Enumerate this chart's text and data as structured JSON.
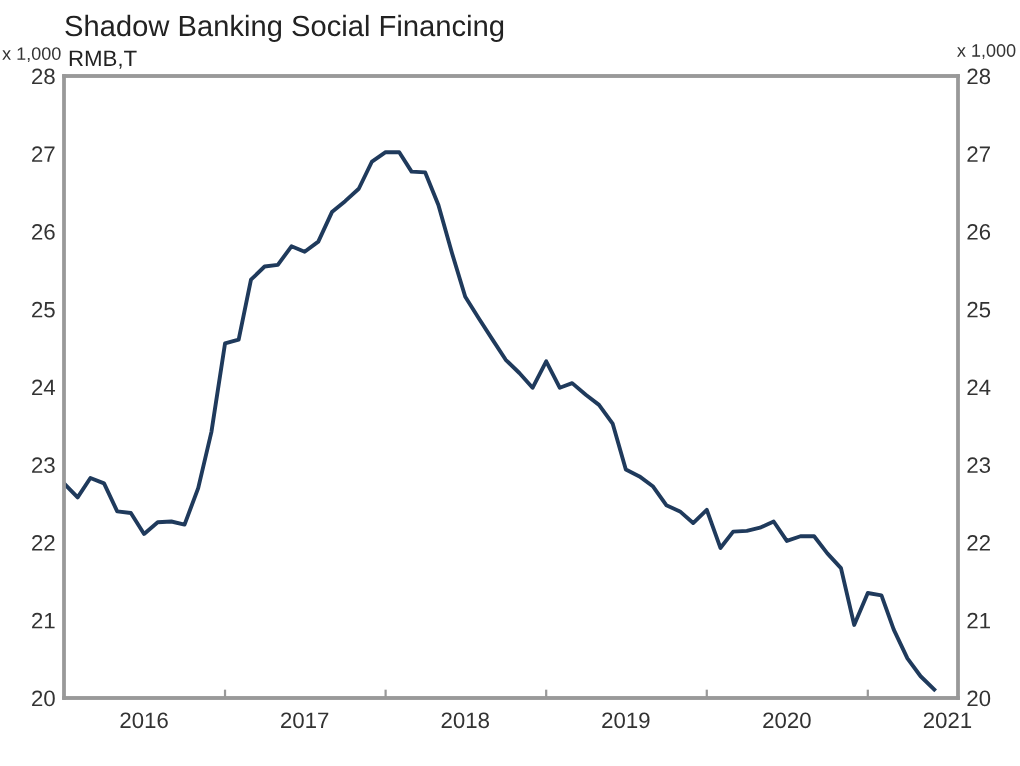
{
  "chart_data": {
    "type": "line",
    "title": "Shadow Banking Social Financing",
    "subtitle": "RMB,T",
    "ylabel": "x 1,000",
    "y2label": "x 1,000",
    "x": [
      "2016-01",
      "2016-02",
      "2016-03",
      "2016-04",
      "2016-05",
      "2016-06",
      "2016-07",
      "2016-08",
      "2016-09",
      "2016-10",
      "2016-11",
      "2016-12",
      "2017-01",
      "2017-02",
      "2017-03",
      "2017-04",
      "2017-05",
      "2017-06",
      "2017-07",
      "2017-08",
      "2017-09",
      "2017-10",
      "2017-11",
      "2017-12",
      "2018-01",
      "2018-02",
      "2018-03",
      "2018-04",
      "2018-05",
      "2018-06",
      "2018-07",
      "2018-08",
      "2018-09",
      "2018-10",
      "2018-11",
      "2018-12",
      "2019-01",
      "2019-02",
      "2019-03",
      "2019-04",
      "2019-05",
      "2019-06",
      "2019-07",
      "2019-08",
      "2019-09",
      "2019-10",
      "2019-11",
      "2019-12",
      "2020-01",
      "2020-02",
      "2020-03",
      "2020-04",
      "2020-05",
      "2020-06",
      "2020-07",
      "2020-08",
      "2020-09",
      "2020-10",
      "2020-11",
      "2020-12",
      "2021-01",
      "2021-02",
      "2021-03",
      "2021-04",
      "2021-05",
      "2021-06"
    ],
    "series": [
      {
        "color": "#1f3a5c",
        "values": [
          22.76,
          22.58,
          22.83,
          22.76,
          22.4,
          22.38,
          22.11,
          22.26,
          22.27,
          22.23,
          22.7,
          23.42,
          24.56,
          24.61,
          25.38,
          25.55,
          25.57,
          25.81,
          25.74,
          25.87,
          26.25,
          26.39,
          26.55,
          26.9,
          27.02,
          27.02,
          26.77,
          26.76,
          26.34,
          25.72,
          25.16,
          24.88,
          24.61,
          24.35,
          24.18,
          23.99,
          24.33,
          23.99,
          24.05,
          23.9,
          23.77,
          23.53,
          22.94,
          22.85,
          22.72,
          22.48,
          22.4,
          22.25,
          22.42,
          21.93,
          22.14,
          22.15,
          22.19,
          22.27,
          22.02,
          22.08,
          22.08,
          21.86,
          21.67,
          20.94,
          21.35,
          21.32,
          20.88,
          20.51,
          20.28,
          20.11
        ]
      }
    ],
    "xlim": [
      "2016-01-01",
      "2021-07-25"
    ],
    "xticks": [
      {
        "value": "2016-01-01",
        "label": null
      },
      {
        "value": "2016-07-01",
        "label": "2016"
      },
      {
        "value": "2017-01-01",
        "label": null
      },
      {
        "value": "2017-07-01",
        "label": "2017"
      },
      {
        "value": "2018-01-01",
        "label": null
      },
      {
        "value": "2018-07-01",
        "label": "2018"
      },
      {
        "value": "2019-01-01",
        "label": null
      },
      {
        "value": "2019-07-01",
        "label": "2019"
      },
      {
        "value": "2020-01-01",
        "label": null
      },
      {
        "value": "2020-07-01",
        "label": "2020"
      },
      {
        "value": "2021-01-01",
        "label": null
      },
      {
        "value": "2021-07-01",
        "label": "2021"
      }
    ],
    "ylim": [
      20,
      28
    ],
    "yticks": [
      20,
      21,
      22,
      23,
      24,
      25,
      26,
      27,
      28
    ],
    "y2lim": [
      20,
      28
    ],
    "y2ticks": [
      20,
      21,
      22,
      23,
      24,
      25,
      26,
      27,
      28
    ],
    "grid": false,
    "legend": false,
    "marker": "none",
    "line_style": "solid"
  }
}
